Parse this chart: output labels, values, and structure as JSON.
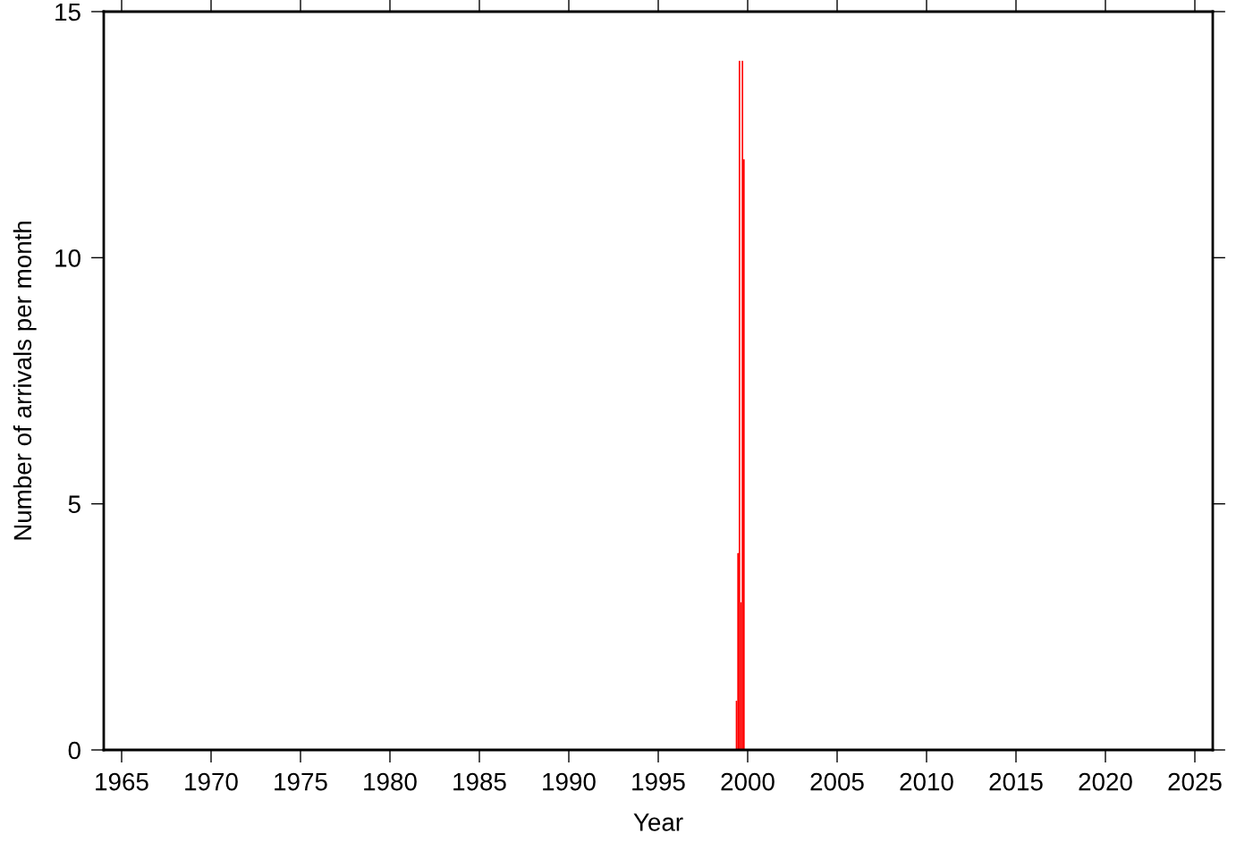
{
  "chart_data": {
    "type": "histogram",
    "xlabel": "Year",
    "ylabel": "Number of arrivals per month",
    "bins": [
      1999.333,
      1999.417,
      1999.5,
      1999.583,
      1999.667,
      1999.75,
      1999.833
    ],
    "values": [
      1,
      4,
      14,
      3,
      14,
      12
    ],
    "color": "#ff0000",
    "xlim": [
      1964,
      2026
    ],
    "xticks": [
      1965,
      1970,
      1975,
      1980,
      1985,
      1990,
      1995,
      2000,
      2005,
      2010,
      2015,
      2020,
      2025
    ],
    "ylim": [
      0,
      15
    ],
    "yticks": [
      0,
      5,
      10,
      15
    ],
    "grid": false
  }
}
